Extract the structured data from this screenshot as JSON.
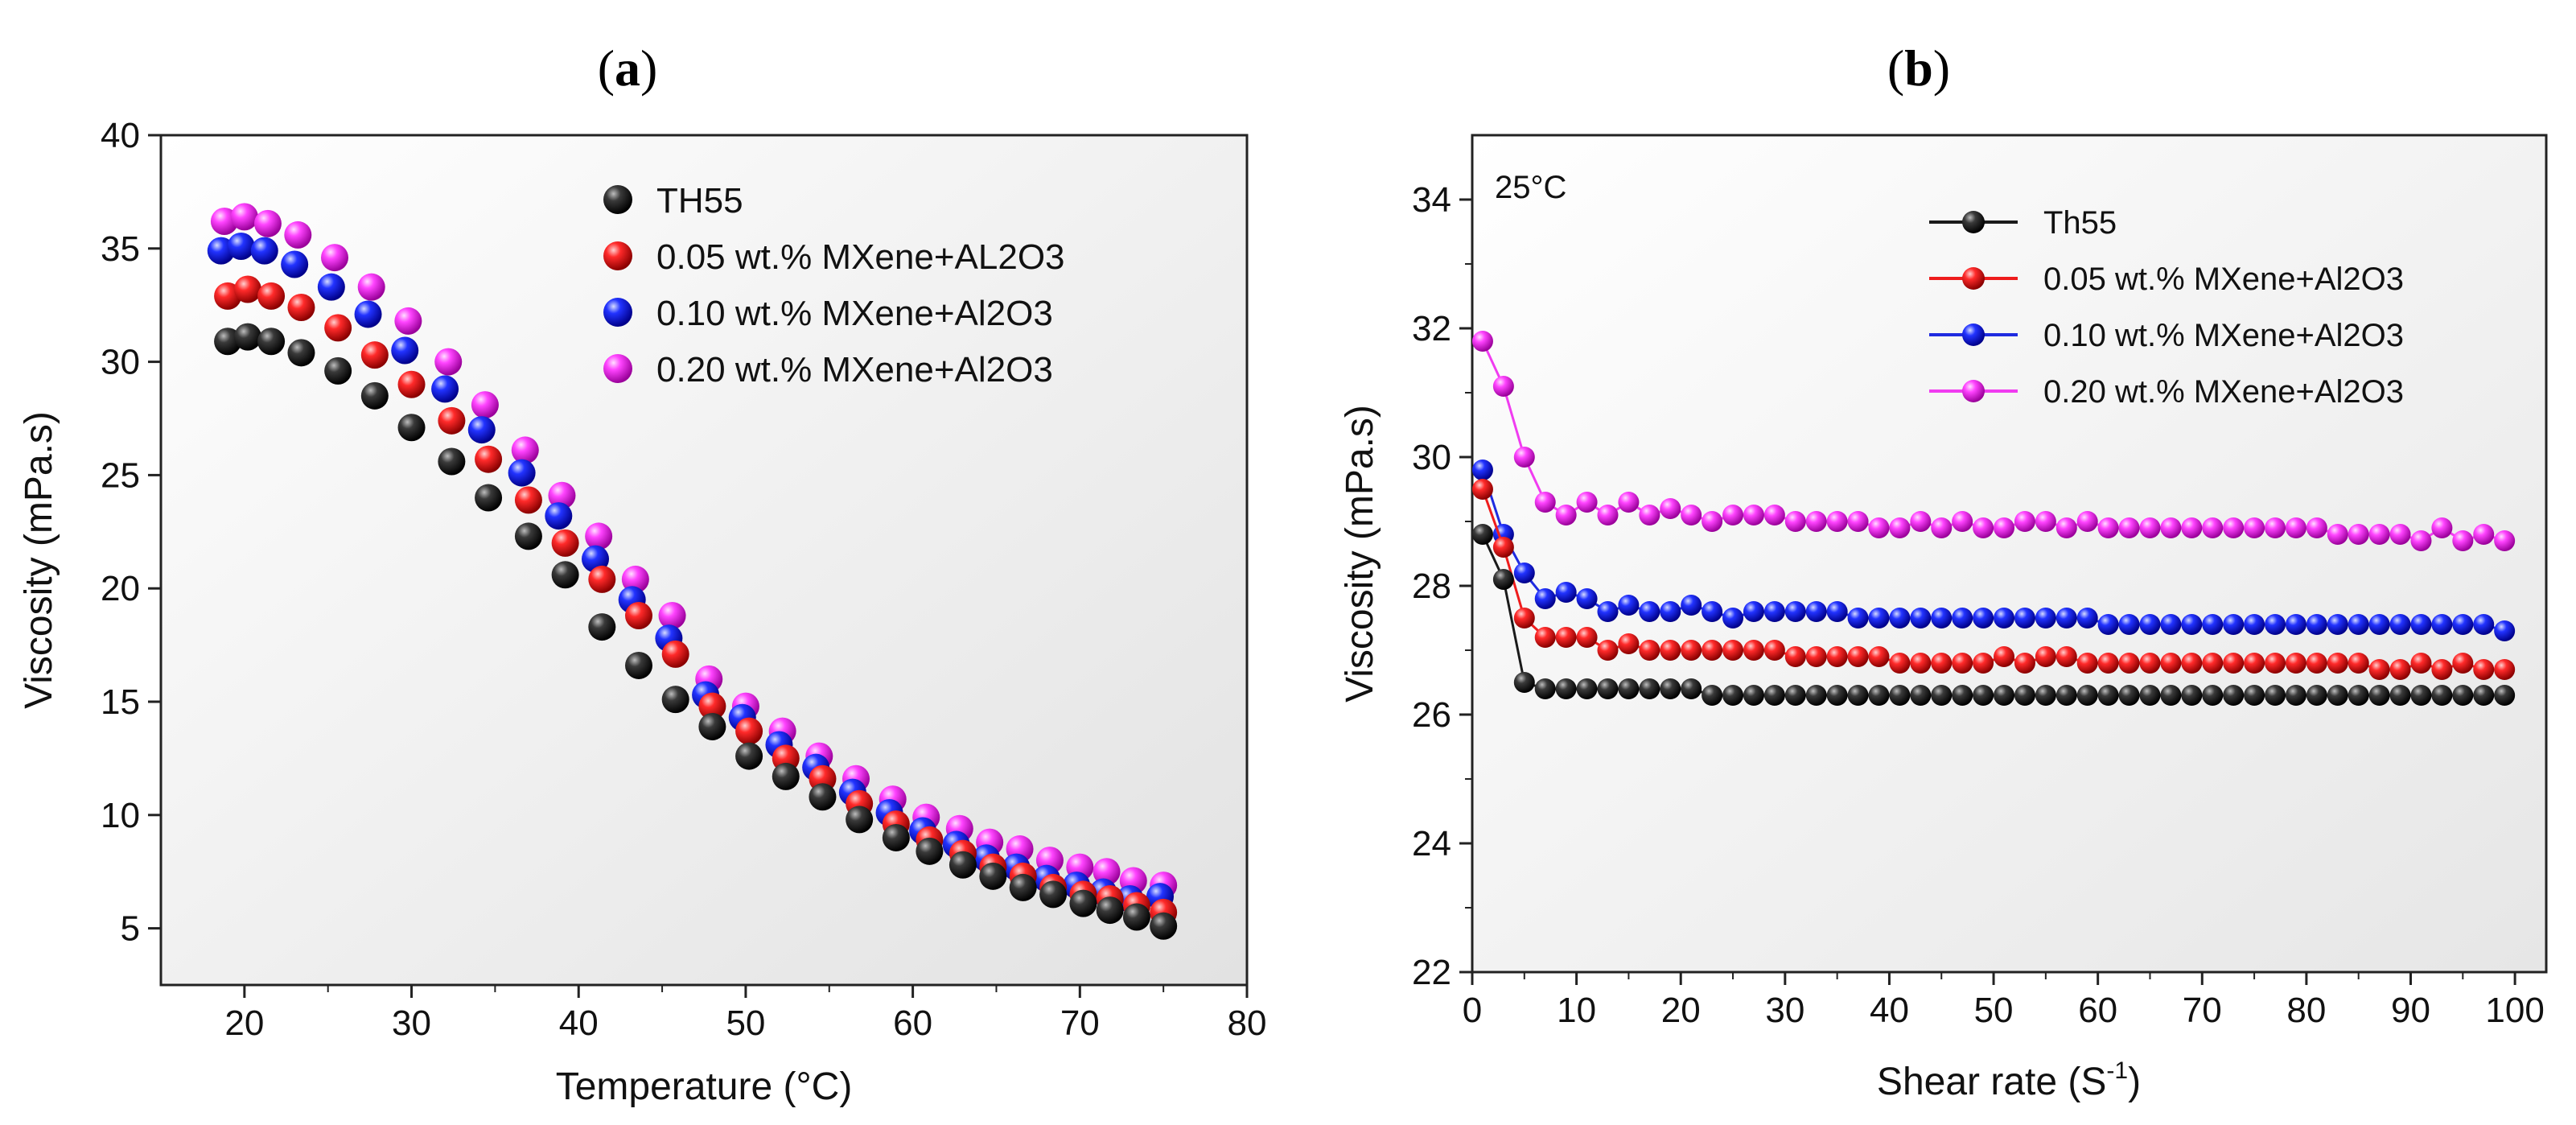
{
  "chart_data": [
    {
      "panel_label": "a",
      "type": "scatter",
      "xlabel": "Temperature (°C)",
      "ylabel": "Viscosity (mPa.s)",
      "xlim": [
        15,
        80
      ],
      "ylim": [
        2.5,
        40
      ],
      "xticks": [
        20,
        30,
        40,
        50,
        60,
        70,
        80
      ],
      "yticks": [
        5,
        10,
        15,
        20,
        25,
        30,
        35,
        40
      ],
      "grid": false,
      "legend_position": "top-right",
      "series": [
        {
          "name": "TH55",
          "color": "#1a1a1a",
          "x": [
            19.0,
            20.2,
            21.6,
            23.4,
            25.6,
            27.8,
            30.0,
            32.4,
            34.6,
            37.0,
            39.2,
            41.4,
            43.6,
            45.8,
            48.0,
            50.2,
            52.4,
            54.6,
            56.8,
            59.0,
            61.0,
            63.0,
            64.8,
            66.6,
            68.4,
            70.2,
            71.8,
            73.4,
            75.0
          ],
          "y": [
            30.9,
            31.1,
            30.9,
            30.4,
            29.6,
            28.5,
            27.1,
            25.6,
            24.0,
            22.3,
            20.6,
            18.3,
            16.6,
            15.1,
            13.9,
            12.6,
            11.7,
            10.8,
            9.8,
            9.0,
            8.4,
            7.8,
            7.3,
            6.8,
            6.5,
            6.1,
            5.8,
            5.5,
            5.1
          ]
        },
        {
          "name": "0.05 wt.% MXene+AL2O3",
          "color": "#ee1c1c",
          "x": [
            19.0,
            20.2,
            21.6,
            23.4,
            25.6,
            27.8,
            30.0,
            32.4,
            34.6,
            37.0,
            39.2,
            41.4,
            43.6,
            45.8,
            48.0,
            50.2,
            52.4,
            54.6,
            56.8,
            59.0,
            61.0,
            63.0,
            64.8,
            66.6,
            68.4,
            70.2,
            71.8,
            73.4,
            75.0
          ],
          "y": [
            32.9,
            33.2,
            32.9,
            32.4,
            31.5,
            30.3,
            29.0,
            27.4,
            25.7,
            23.9,
            22.0,
            20.4,
            18.8,
            17.1,
            14.8,
            13.7,
            12.5,
            11.6,
            10.5,
            9.6,
            8.9,
            8.3,
            7.7,
            7.3,
            6.8,
            6.5,
            6.3,
            6.0,
            5.7
          ]
        },
        {
          "name": "0.10 wt.% MXene+Al2O3",
          "color": "#1f2be0",
          "x": [
            18.6,
            19.8,
            21.2,
            23.0,
            25.2,
            27.4,
            29.6,
            32.0,
            34.2,
            36.6,
            38.8,
            41.0,
            43.2,
            45.4,
            47.6,
            49.8,
            52.0,
            54.2,
            56.4,
            58.6,
            60.6,
            62.6,
            64.4,
            66.2,
            68.0,
            69.8,
            71.4,
            73.0,
            74.8
          ],
          "y": [
            34.9,
            35.1,
            34.9,
            34.3,
            33.3,
            32.1,
            30.5,
            28.8,
            27.0,
            25.1,
            23.2,
            21.3,
            19.5,
            17.8,
            15.3,
            14.3,
            13.1,
            12.1,
            11.0,
            10.1,
            9.3,
            8.7,
            8.1,
            7.7,
            7.2,
            6.9,
            6.6,
            6.3,
            6.4
          ]
        },
        {
          "name": "0.20 wt.% MXene+Al2O3",
          "color": "#f03cf0",
          "x": [
            18.8,
            20.0,
            21.4,
            23.2,
            25.4,
            27.6,
            29.8,
            32.2,
            34.4,
            36.8,
            39.0,
            41.2,
            43.4,
            45.6,
            47.8,
            50.0,
            52.2,
            54.4,
            56.6,
            58.8,
            60.8,
            62.8,
            64.6,
            66.4,
            68.2,
            70.0,
            71.6,
            73.2,
            75.0
          ],
          "y": [
            36.2,
            36.4,
            36.1,
            35.6,
            34.6,
            33.3,
            31.8,
            30.0,
            28.1,
            26.1,
            24.1,
            22.3,
            20.4,
            18.8,
            16.0,
            14.8,
            13.7,
            12.6,
            11.6,
            10.7,
            9.9,
            9.4,
            8.8,
            8.5,
            8.0,
            7.7,
            7.5,
            7.1,
            6.9
          ]
        }
      ]
    },
    {
      "panel_label": "b",
      "type": "line",
      "annotation": "25°C",
      "xlabel_main": "Shear rate (S",
      "xlabel_sup": "-1",
      "xlabel_close": ")",
      "ylabel": "Viscosity (mPa.s)",
      "xlim": [
        0,
        103
      ],
      "ylim": [
        22,
        35
      ],
      "xticks": [
        0,
        10,
        20,
        30,
        40,
        50,
        60,
        70,
        80,
        90,
        100
      ],
      "yticks": [
        22,
        24,
        26,
        28,
        30,
        32,
        34
      ],
      "grid": false,
      "legend_position": "top-right",
      "series": [
        {
          "name": "Th55",
          "color": "#1a1a1a",
          "x": [
            1,
            3,
            5,
            7,
            9,
            11,
            13,
            15,
            17,
            19,
            21,
            23,
            25,
            27,
            29,
            31,
            33,
            35,
            37,
            39,
            41,
            43,
            45,
            47,
            49,
            51,
            53,
            55,
            57,
            59,
            61,
            63,
            65,
            67,
            69,
            71,
            73,
            75,
            77,
            79,
            81,
            83,
            85,
            87,
            89,
            91,
            93,
            95,
            97,
            99
          ],
          "y": [
            28.8,
            28.1,
            26.5,
            26.4,
            26.4,
            26.4,
            26.4,
            26.4,
            26.4,
            26.4,
            26.4,
            26.3,
            26.3,
            26.3,
            26.3,
            26.3,
            26.3,
            26.3,
            26.3,
            26.3,
            26.3,
            26.3,
            26.3,
            26.3,
            26.3,
            26.3,
            26.3,
            26.3,
            26.3,
            26.3,
            26.3,
            26.3,
            26.3,
            26.3,
            26.3,
            26.3,
            26.3,
            26.3,
            26.3,
            26.3,
            26.3,
            26.3,
            26.3,
            26.3,
            26.3,
            26.3,
            26.3,
            26.3,
            26.3,
            26.3
          ]
        },
        {
          "name": "0.05 wt.% MXene+Al2O3",
          "color": "#ee1c1c",
          "x": [
            1,
            3,
            5,
            7,
            9,
            11,
            13,
            15,
            17,
            19,
            21,
            23,
            25,
            27,
            29,
            31,
            33,
            35,
            37,
            39,
            41,
            43,
            45,
            47,
            49,
            51,
            53,
            55,
            57,
            59,
            61,
            63,
            65,
            67,
            69,
            71,
            73,
            75,
            77,
            79,
            81,
            83,
            85,
            87,
            89,
            91,
            93,
            95,
            97,
            99
          ],
          "y": [
            29.5,
            28.6,
            27.5,
            27.2,
            27.2,
            27.2,
            27.0,
            27.1,
            27.0,
            27.0,
            27.0,
            27.0,
            27.0,
            27.0,
            27.0,
            26.9,
            26.9,
            26.9,
            26.9,
            26.9,
            26.8,
            26.8,
            26.8,
            26.8,
            26.8,
            26.9,
            26.8,
            26.9,
            26.9,
            26.8,
            26.8,
            26.8,
            26.8,
            26.8,
            26.8,
            26.8,
            26.8,
            26.8,
            26.8,
            26.8,
            26.8,
            26.8,
            26.8,
            26.7,
            26.7,
            26.8,
            26.7,
            26.8,
            26.7,
            26.7
          ]
        },
        {
          "name": "0.10 wt.% MXene+Al2O3",
          "color": "#1f2be0",
          "x": [
            1,
            3,
            5,
            7,
            9,
            11,
            13,
            15,
            17,
            19,
            21,
            23,
            25,
            27,
            29,
            31,
            33,
            35,
            37,
            39,
            41,
            43,
            45,
            47,
            49,
            51,
            53,
            55,
            57,
            59,
            61,
            63,
            65,
            67,
            69,
            71,
            73,
            75,
            77,
            79,
            81,
            83,
            85,
            87,
            89,
            91,
            93,
            95,
            97,
            99
          ],
          "y": [
            29.8,
            28.8,
            28.2,
            27.8,
            27.9,
            27.8,
            27.6,
            27.7,
            27.6,
            27.6,
            27.7,
            27.6,
            27.5,
            27.6,
            27.6,
            27.6,
            27.6,
            27.6,
            27.5,
            27.5,
            27.5,
            27.5,
            27.5,
            27.5,
            27.5,
            27.5,
            27.5,
            27.5,
            27.5,
            27.5,
            27.4,
            27.4,
            27.4,
            27.4,
            27.4,
            27.4,
            27.4,
            27.4,
            27.4,
            27.4,
            27.4,
            27.4,
            27.4,
            27.4,
            27.4,
            27.4,
            27.4,
            27.4,
            27.4,
            27.3
          ]
        },
        {
          "name": "0.20 wt.% MXene+Al2O3",
          "color": "#f03cf0",
          "x": [
            1,
            3,
            5,
            7,
            9,
            11,
            13,
            15,
            17,
            19,
            21,
            23,
            25,
            27,
            29,
            31,
            33,
            35,
            37,
            39,
            41,
            43,
            45,
            47,
            49,
            51,
            53,
            55,
            57,
            59,
            61,
            63,
            65,
            67,
            69,
            71,
            73,
            75,
            77,
            79,
            81,
            83,
            85,
            87,
            89,
            91,
            93,
            95,
            97,
            99
          ],
          "y": [
            31.8,
            31.1,
            30.0,
            29.3,
            29.1,
            29.3,
            29.1,
            29.3,
            29.1,
            29.2,
            29.1,
            29.0,
            29.1,
            29.1,
            29.1,
            29.0,
            29.0,
            29.0,
            29.0,
            28.9,
            28.9,
            29.0,
            28.9,
            29.0,
            28.9,
            28.9,
            29.0,
            29.0,
            28.9,
            29.0,
            28.9,
            28.9,
            28.9,
            28.9,
            28.9,
            28.9,
            28.9,
            28.9,
            28.9,
            28.9,
            28.9,
            28.8,
            28.8,
            28.8,
            28.8,
            28.7,
            28.9,
            28.7,
            28.8,
            28.7
          ]
        }
      ]
    }
  ]
}
